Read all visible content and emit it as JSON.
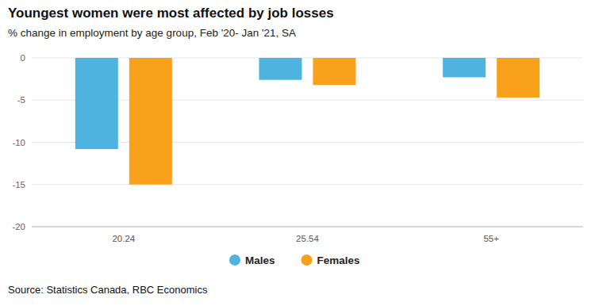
{
  "chart_data": {
    "type": "bar",
    "title": "Youngest women were most affected by job losses",
    "subtitle": "% change in employment by age group, Feb '20- Jan '21, SA",
    "source": "Source: Statistics Canada, RBC Economics",
    "categories": [
      "20.24",
      "25.54",
      "55+"
    ],
    "series": [
      {
        "name": "Males",
        "color": "#4fb3e0",
        "values": [
          -10.8,
          -2.6,
          -2.3
        ]
      },
      {
        "name": "Females",
        "color": "#f9a11b",
        "values": [
          -15.0,
          -3.2,
          -4.7
        ]
      }
    ],
    "ylim": [
      -20,
      0
    ],
    "yticks": [
      0,
      -5,
      -10,
      -15,
      -20
    ],
    "grid": true,
    "legend": "bottom"
  }
}
